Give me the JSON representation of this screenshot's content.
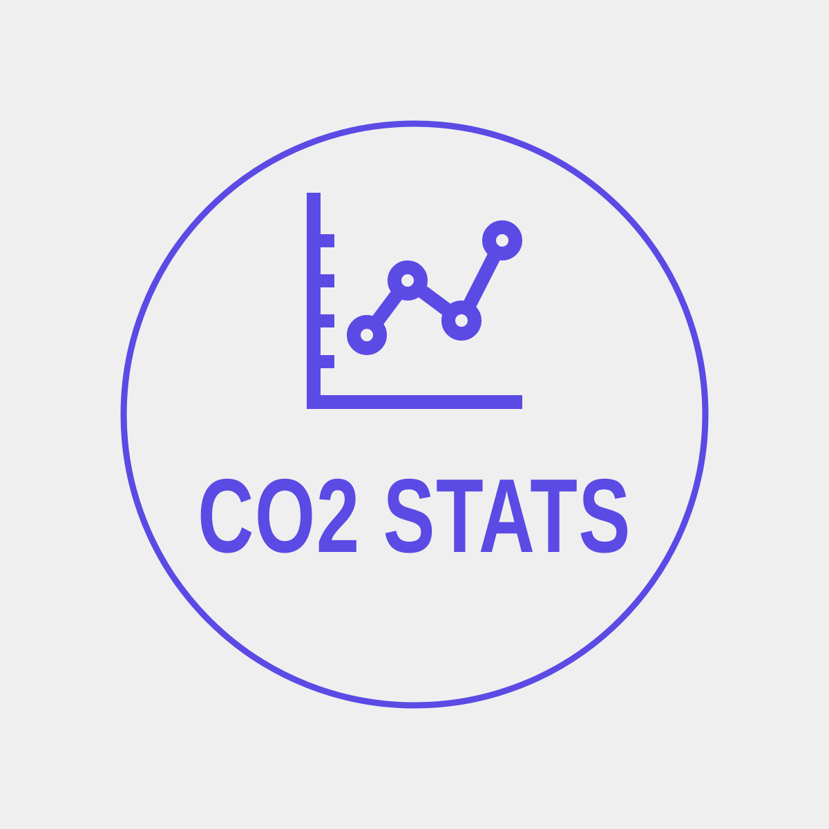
{
  "logo": {
    "title": "CO2 STATS",
    "accent_color": "#5b4ae4",
    "background_color": "#efefef",
    "icon": "line-chart-icon"
  }
}
